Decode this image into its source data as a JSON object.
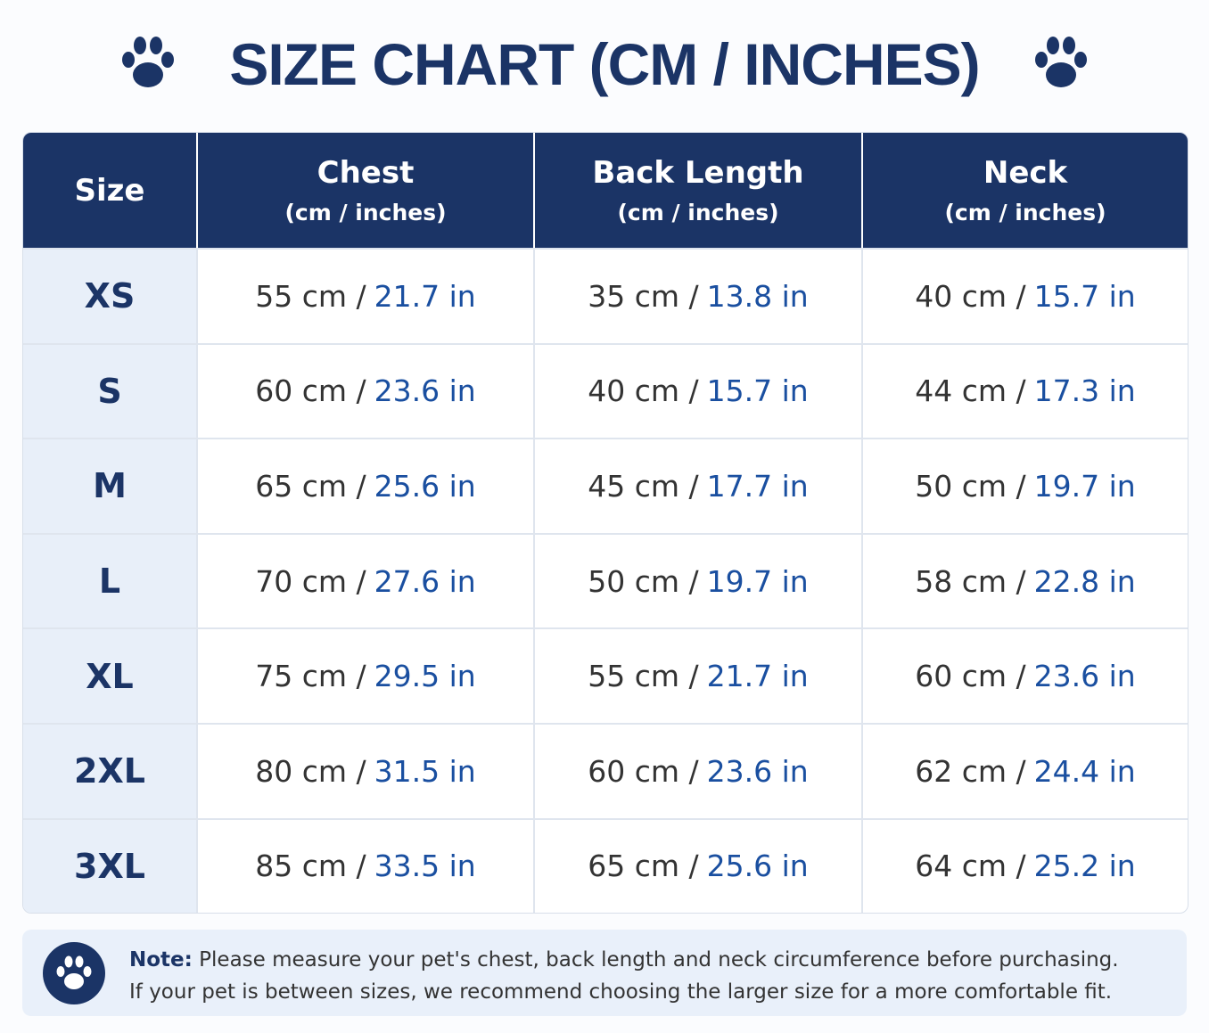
{
  "header": {
    "title": "SIZE CHART (CM / INCHES)"
  },
  "table": {
    "columns": [
      {
        "title": "Size"
      },
      {
        "title": "Chest",
        "subtitle": "(cm / inches)"
      },
      {
        "title": "Back Length",
        "subtitle": "(cm / inches)"
      },
      {
        "title": "Neck",
        "subtitle": "(cm / inches)"
      }
    ],
    "rows": [
      {
        "size": "XS",
        "cells": [
          {
            "cm": "55 cm /",
            "in": "21.7 in"
          },
          {
            "cm": "35 cm /",
            "in": "13.8 in"
          },
          {
            "cm": "40 cm /",
            "in": "15.7 in"
          }
        ]
      },
      {
        "size": "S",
        "cells": [
          {
            "cm": "60 cm /",
            "in": "23.6 in"
          },
          {
            "cm": "40 cm /",
            "in": "15.7 in"
          },
          {
            "cm": "44 cm /",
            "in": "17.3 in"
          }
        ]
      },
      {
        "size": "M",
        "cells": [
          {
            "cm": "65 cm /",
            "in": "25.6 in"
          },
          {
            "cm": "45 cm /",
            "in": "17.7 in"
          },
          {
            "cm": "50 cm /",
            "in": "19.7 in"
          }
        ]
      },
      {
        "size": "L",
        "cells": [
          {
            "cm": "70 cm /",
            "in": "27.6 in"
          },
          {
            "cm": "50 cm /",
            "in": "19.7 in"
          },
          {
            "cm": "58 cm /",
            "in": "22.8 in"
          }
        ]
      },
      {
        "size": "XL",
        "cells": [
          {
            "cm": "75 cm /",
            "in": "29.5 in"
          },
          {
            "cm": "55 cm /",
            "in": "21.7 in"
          },
          {
            "cm": "60 cm /",
            "in": "23.6 in"
          }
        ]
      },
      {
        "size": "2XL",
        "cells": [
          {
            "cm": "80 cm /",
            "in": "31.5 in"
          },
          {
            "cm": "60 cm /",
            "in": "23.6 in"
          },
          {
            "cm": "62 cm /",
            "in": "24.4 in"
          }
        ]
      },
      {
        "size": "3XL",
        "cells": [
          {
            "cm": "85 cm /",
            "in": "33.5 in"
          },
          {
            "cm": "65 cm /",
            "in": "25.6 in"
          },
          {
            "cm": "64 cm /",
            "in": "25.2 in"
          }
        ]
      }
    ]
  },
  "note": {
    "label": "Note:",
    "lines": [
      "Please measure your pet's chest, back length and neck circumference before purchasing.",
      "If your pet is between sizes, we recommend choosing the larger size for a more comfortable fit."
    ]
  }
}
